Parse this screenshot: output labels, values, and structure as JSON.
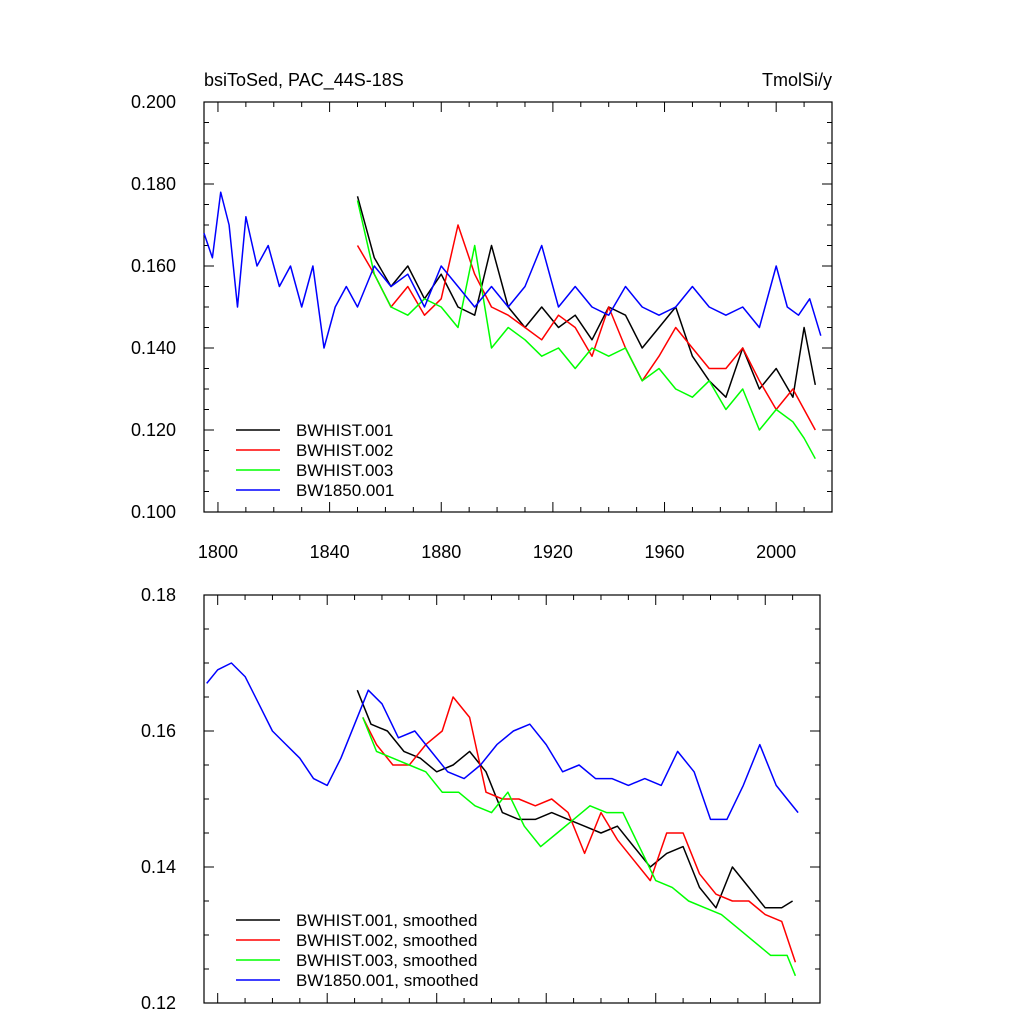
{
  "chart_data": [
    {
      "type": "line",
      "title": "bsiToSed, PAC_44S-18S",
      "units": "TmolSi/y",
      "xlabel": "",
      "ylabel": "",
      "xlim": [
        1795,
        2020
      ],
      "ylim": [
        0.1,
        0.2
      ],
      "xticks": [
        1800,
        1840,
        1880,
        1920,
        1960,
        2000
      ],
      "yticks": [
        0.1,
        0.12,
        0.14,
        0.16,
        0.18,
        0.2
      ],
      "ytick_labels": [
        "0.100",
        "0.120",
        "0.140",
        "0.160",
        "0.180",
        "0.200"
      ],
      "legend_position": "bottom-left",
      "grid": false,
      "series": [
        {
          "name": "BWHIST.001",
          "color": "#000000",
          "x": [
            1850,
            1856,
            1862,
            1868,
            1874,
            1880,
            1886,
            1892,
            1898,
            1904,
            1910,
            1916,
            1922,
            1928,
            1934,
            1940,
            1946,
            1952,
            1958,
            1964,
            1970,
            1976,
            1982,
            1988,
            1994,
            2000,
            2006,
            2010,
            2014
          ],
          "y": [
            0.177,
            0.162,
            0.155,
            0.16,
            0.152,
            0.158,
            0.15,
            0.148,
            0.165,
            0.15,
            0.145,
            0.15,
            0.145,
            0.148,
            0.142,
            0.15,
            0.148,
            0.14,
            0.145,
            0.15,
            0.138,
            0.132,
            0.128,
            0.14,
            0.13,
            0.135,
            0.128,
            0.145,
            0.131
          ]
        },
        {
          "name": "BWHIST.002",
          "color": "#ff0000",
          "x": [
            1850,
            1856,
            1862,
            1868,
            1874,
            1880,
            1886,
            1892,
            1898,
            1904,
            1910,
            1916,
            1922,
            1928,
            1934,
            1940,
            1946,
            1952,
            1958,
            1964,
            1970,
            1976,
            1982,
            1988,
            1994,
            2000,
            2006,
            2010,
            2014
          ],
          "y": [
            0.165,
            0.158,
            0.15,
            0.155,
            0.148,
            0.152,
            0.17,
            0.158,
            0.15,
            0.148,
            0.145,
            0.142,
            0.148,
            0.145,
            0.138,
            0.15,
            0.14,
            0.132,
            0.138,
            0.145,
            0.14,
            0.135,
            0.135,
            0.14,
            0.132,
            0.125,
            0.13,
            0.125,
            0.12
          ]
        },
        {
          "name": "BWHIST.003",
          "color": "#00ff00",
          "x": [
            1850,
            1856,
            1862,
            1868,
            1874,
            1880,
            1886,
            1892,
            1898,
            1904,
            1910,
            1916,
            1922,
            1928,
            1934,
            1940,
            1946,
            1952,
            1958,
            1964,
            1970,
            1976,
            1982,
            1988,
            1994,
            2000,
            2006,
            2010,
            2014
          ],
          "y": [
            0.176,
            0.158,
            0.15,
            0.148,
            0.152,
            0.15,
            0.145,
            0.165,
            0.14,
            0.145,
            0.142,
            0.138,
            0.14,
            0.135,
            0.14,
            0.138,
            0.14,
            0.132,
            0.135,
            0.13,
            0.128,
            0.132,
            0.125,
            0.13,
            0.12,
            0.125,
            0.122,
            0.118,
            0.113
          ]
        },
        {
          "name": "BW1850.001",
          "color": "#0000ff",
          "x": [
            1795,
            1798,
            1801,
            1804,
            1807,
            1810,
            1814,
            1818,
            1822,
            1826,
            1830,
            1834,
            1838,
            1842,
            1846,
            1850,
            1856,
            1862,
            1868,
            1874,
            1880,
            1886,
            1892,
            1898,
            1904,
            1910,
            1916,
            1922,
            1928,
            1934,
            1940,
            1946,
            1952,
            1958,
            1964,
            1970,
            1976,
            1982,
            1988,
            1994,
            2000,
            2004,
            2008,
            2012,
            2016
          ],
          "y": [
            0.168,
            0.162,
            0.178,
            0.17,
            0.15,
            0.172,
            0.16,
            0.165,
            0.155,
            0.16,
            0.15,
            0.16,
            0.14,
            0.15,
            0.155,
            0.15,
            0.16,
            0.155,
            0.158,
            0.15,
            0.16,
            0.155,
            0.15,
            0.155,
            0.15,
            0.155,
            0.165,
            0.15,
            0.155,
            0.15,
            0.148,
            0.155,
            0.15,
            0.148,
            0.15,
            0.155,
            0.15,
            0.148,
            0.15,
            0.145,
            0.16,
            0.15,
            0.148,
            0.152,
            0.143
          ]
        }
      ]
    },
    {
      "type": "line",
      "title": "",
      "xlabel": "",
      "ylabel": "",
      "xlim": [
        1795,
        2020
      ],
      "ylim": [
        0.12,
        0.18
      ],
      "xticks": [
        1800,
        1840,
        1880,
        1920,
        1960,
        2000
      ],
      "yticks": [
        0.12,
        0.14,
        0.16,
        0.18
      ],
      "ytick_labels": [
        "0.12",
        "0.14",
        "0.16",
        "0.18"
      ],
      "legend_position": "bottom-left",
      "grid": false,
      "series": [
        {
          "name": "BWHIST.001, smoothed",
          "color": "#000000",
          "x": [
            1851,
            1856,
            1862,
            1868,
            1874,
            1880,
            1886,
            1892,
            1898,
            1904,
            1910,
            1916,
            1922,
            1928,
            1934,
            1940,
            1946,
            1952,
            1958,
            1964,
            1970,
            1976,
            1982,
            1988,
            1994,
            2000,
            2006,
            2010
          ],
          "y": [
            0.166,
            0.161,
            0.16,
            0.157,
            0.156,
            0.154,
            0.155,
            0.157,
            0.154,
            0.148,
            0.147,
            0.147,
            0.148,
            0.147,
            0.146,
            0.145,
            0.146,
            0.143,
            0.14,
            0.142,
            0.143,
            0.137,
            0.134,
            0.14,
            0.137,
            0.134,
            0.134,
            0.135
          ]
        },
        {
          "name": "BWHIST.002, smoothed",
          "color": "#ff0000",
          "x": [
            1853,
            1858,
            1864,
            1870,
            1876,
            1882,
            1886,
            1892,
            1898,
            1904,
            1910,
            1916,
            1922,
            1928,
            1934,
            1940,
            1946,
            1952,
            1958,
            1964,
            1970,
            1976,
            1982,
            1988,
            1994,
            2000,
            2006,
            2011
          ],
          "y": [
            0.162,
            0.158,
            0.155,
            0.155,
            0.158,
            0.16,
            0.165,
            0.162,
            0.151,
            0.15,
            0.15,
            0.149,
            0.15,
            0.148,
            0.142,
            0.148,
            0.144,
            0.141,
            0.138,
            0.145,
            0.145,
            0.139,
            0.136,
            0.135,
            0.135,
            0.133,
            0.132,
            0.126
          ]
        },
        {
          "name": "BWHIST.003, smoothed",
          "color": "#00ff00",
          "x": [
            1853,
            1858,
            1864,
            1870,
            1876,
            1882,
            1888,
            1894,
            1900,
            1906,
            1912,
            1918,
            1924,
            1930,
            1936,
            1942,
            1948,
            1954,
            1960,
            1966,
            1972,
            1978,
            1984,
            1990,
            1996,
            2002,
            2008,
            2011
          ],
          "y": [
            0.162,
            0.157,
            0.156,
            0.155,
            0.154,
            0.151,
            0.151,
            0.149,
            0.148,
            0.151,
            0.146,
            0.143,
            0.145,
            0.147,
            0.149,
            0.148,
            0.148,
            0.143,
            0.138,
            0.137,
            0.135,
            0.134,
            0.133,
            0.131,
            0.129,
            0.127,
            0.127,
            0.124
          ]
        },
        {
          "name": "BW1850.001, smoothed",
          "color": "#0000ff",
          "x": [
            1796,
            1800,
            1805,
            1810,
            1815,
            1820,
            1825,
            1830,
            1835,
            1840,
            1845,
            1850,
            1855,
            1860,
            1866,
            1872,
            1878,
            1884,
            1890,
            1896,
            1902,
            1908,
            1914,
            1920,
            1926,
            1932,
            1938,
            1944,
            1950,
            1956,
            1962,
            1968,
            1974,
            1980,
            1986,
            1992,
            1998,
            2004,
            2008,
            2012
          ],
          "y": [
            0.167,
            0.169,
            0.17,
            0.168,
            0.164,
            0.16,
            0.158,
            0.156,
            0.153,
            0.152,
            0.156,
            0.161,
            0.166,
            0.164,
            0.159,
            0.16,
            0.157,
            0.154,
            0.153,
            0.155,
            0.158,
            0.16,
            0.161,
            0.158,
            0.154,
            0.155,
            0.153,
            0.153,
            0.152,
            0.153,
            0.152,
            0.157,
            0.154,
            0.147,
            0.147,
            0.152,
            0.158,
            0.152,
            0.15,
            0.148
          ]
        }
      ]
    }
  ]
}
